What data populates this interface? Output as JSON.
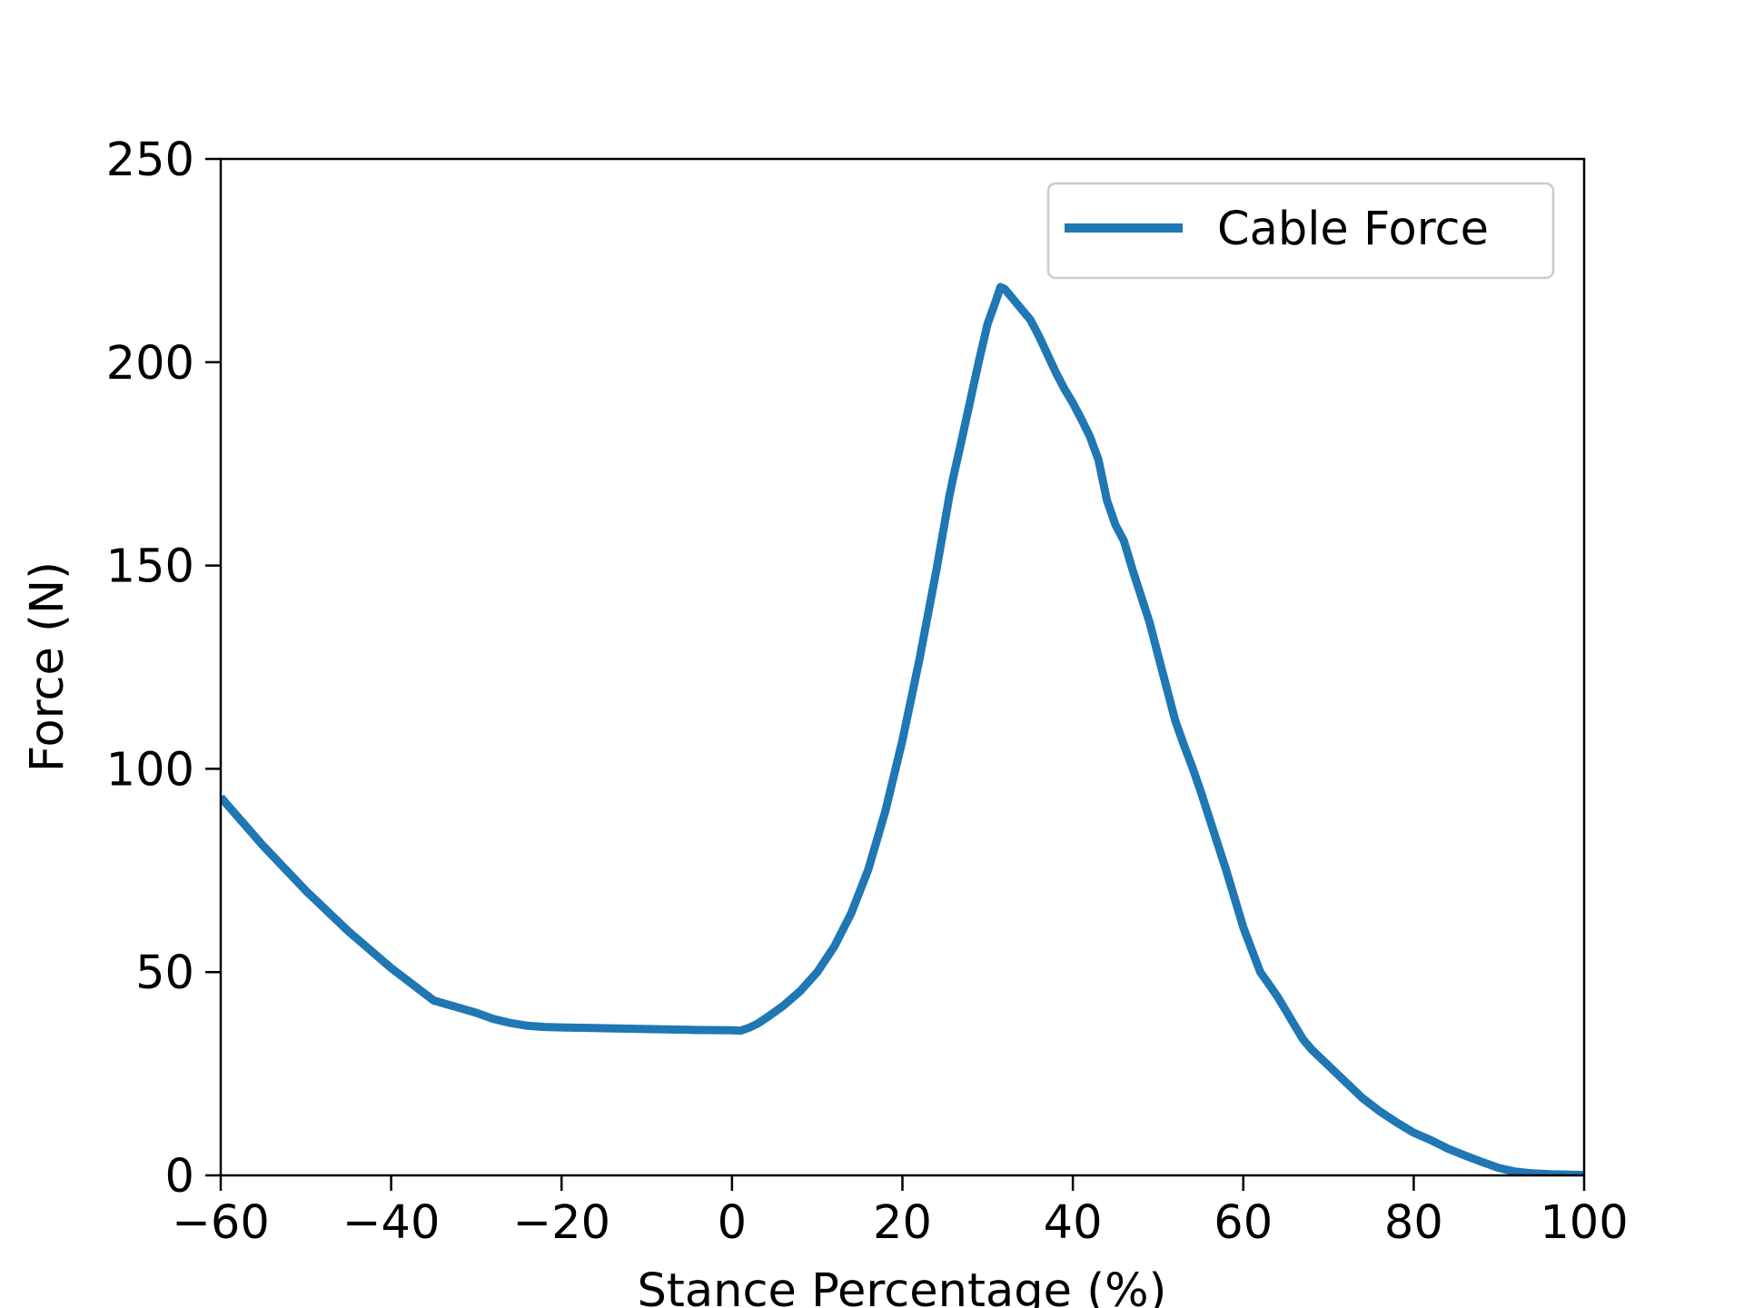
{
  "chart_data": {
    "type": "line",
    "title": "",
    "xlabel": "Stance Percentage (%)",
    "ylabel": "Force (N)",
    "xlim": [
      -60,
      100
    ],
    "ylim": [
      0,
      250
    ],
    "xticks": [
      -60,
      -40,
      -20,
      0,
      20,
      40,
      60,
      80,
      100
    ],
    "xtick_labels": [
      "−60",
      "−40",
      "−20",
      "0",
      "20",
      "40",
      "60",
      "80",
      "100"
    ],
    "yticks": [
      0,
      50,
      100,
      150,
      200,
      250
    ],
    "ytick_labels": [
      "0",
      "50",
      "100",
      "150",
      "200",
      "250"
    ],
    "grid": false,
    "legend": {
      "position": "top-right"
    },
    "series": [
      {
        "name": "Cable Force",
        "color": "#1f77b4",
        "x": [
          -60,
          -55,
          -50,
          -45,
          -40,
          -35,
          -30,
          -28,
          -26,
          -24,
          -22,
          -20,
          -15,
          -10,
          -5,
          0,
          1,
          2,
          3,
          4,
          6,
          8,
          10,
          12,
          14,
          16,
          18,
          20,
          22,
          24,
          25.5,
          26,
          27,
          28,
          29,
          30,
          31,
          31.5,
          32,
          33,
          34,
          35,
          36,
          37,
          38,
          39,
          40,
          41,
          42,
          43,
          44,
          45,
          46,
          47,
          48,
          49,
          50,
          51,
          52,
          53,
          54,
          55,
          56,
          57,
          58,
          59,
          60,
          61,
          62,
          63,
          64,
          65,
          66,
          67,
          68,
          69,
          70,
          72,
          74,
          76,
          78,
          80,
          82,
          84,
          86,
          88,
          90,
          92,
          94,
          96,
          98,
          100
        ],
        "y": [
          93,
          81,
          70,
          60,
          51,
          43,
          40,
          38.5,
          37.5,
          36.8,
          36.5,
          36.4,
          36.2,
          36,
          35.8,
          35.7,
          35.6,
          36.3,
          37.3,
          38.7,
          41.7,
          45.3,
          50,
          56.3,
          64.5,
          75.3,
          89.6,
          107,
          127,
          149,
          167,
          172,
          181.4,
          191,
          200.5,
          209.5,
          215.3,
          218.5,
          218,
          215.5,
          213,
          210.5,
          206.5,
          202,
          197.5,
          193.5,
          190,
          186,
          181.7,
          176,
          166,
          160,
          156,
          149,
          142.5,
          136,
          128,
          120,
          112,
          106,
          100.5,
          94.5,
          88,
          81.5,
          75,
          68,
          61,
          55.5,
          50,
          47,
          44,
          40.5,
          37,
          33.5,
          31,
          29,
          27,
          23,
          19,
          15.8,
          13,
          10.5,
          8.7,
          6.6,
          4.9,
          3.3,
          1.8,
          0.9,
          0.5,
          0.3,
          0.2,
          0.1
        ]
      }
    ]
  }
}
